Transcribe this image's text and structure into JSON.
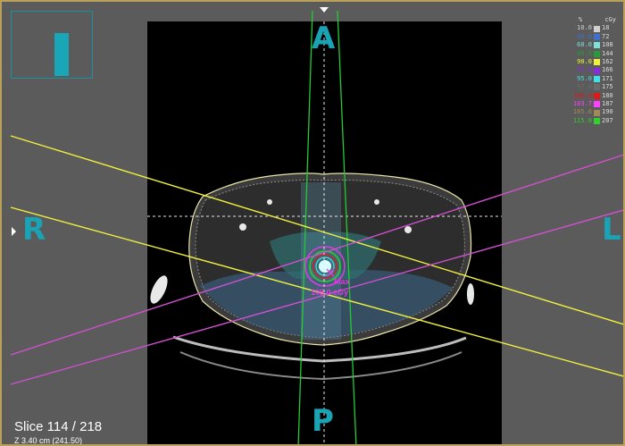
{
  "orientation": {
    "anterior": "A",
    "posterior": "P",
    "right": "R",
    "left": "L"
  },
  "slice": {
    "label": "Slice  114 / 218",
    "z_position": "Z 3.40 cm  (241.50)"
  },
  "dose_max": {
    "label": "Max",
    "value": "108.0 cGy"
  },
  "legend": {
    "header_percent": "%",
    "header_unit": "cGy",
    "rows": [
      {
        "pct": "10.0",
        "cgy": "18",
        "color": "#d0d0d0"
      },
      {
        "pct": "40.0",
        "cgy": "72",
        "color": "#3e6fd1"
      },
      {
        "pct": "60.0",
        "cgy": "108",
        "color": "#7fe0d8"
      },
      {
        "pct": "80.0",
        "cgy": "144",
        "color": "#2a9a3a"
      },
      {
        "pct": "90.0",
        "cgy": "162",
        "color": "#f0f040"
      },
      {
        "pct": "92.0",
        "cgy": "166",
        "color": "#8a2be2"
      },
      {
        "pct": "95.0",
        "cgy": "171",
        "color": "#40e0e8"
      },
      {
        "pct": "97.0",
        "cgy": "175",
        "color": "#6a6a6a"
      },
      {
        "pct": "100.0",
        "cgy": "180",
        "color": "#e01818"
      },
      {
        "pct": "103.7",
        "cgy": "187",
        "color": "#ff40ff"
      },
      {
        "pct": "105.6",
        "cgy": "190",
        "color": "#a08a5a"
      },
      {
        "pct": "115.0",
        "cgy": "207",
        "color": "#30d030"
      }
    ]
  }
}
